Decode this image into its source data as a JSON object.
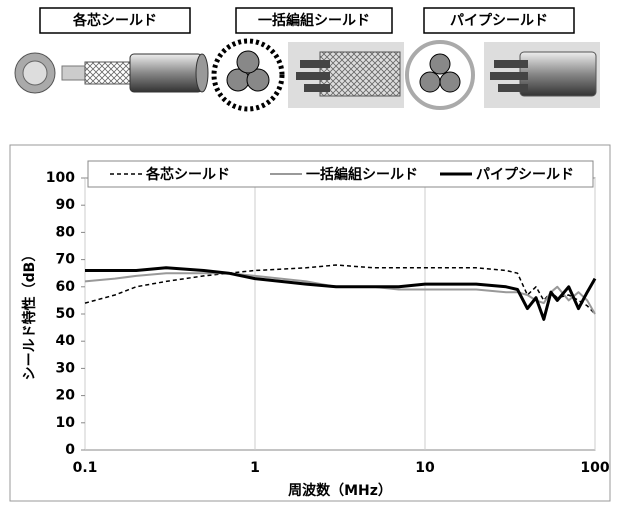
{
  "cable_types": [
    "各芯シールド",
    "一括編組シールド",
    "パイプシールド"
  ],
  "chart_data": {
    "type": "line",
    "x_label": "周波数（MHz）",
    "y_label": "シールド特性（dB）",
    "xscale": "log",
    "xlim": [
      0.1,
      100
    ],
    "xticks": [
      0.1,
      1,
      10,
      100
    ],
    "ylim": [
      0,
      100
    ],
    "yticks": [
      0,
      10,
      20,
      30,
      40,
      50,
      60,
      70,
      80,
      90,
      100
    ],
    "grid": "x",
    "legend": "top",
    "x": [
      0.1,
      0.15,
      0.2,
      0.3,
      0.5,
      0.7,
      1,
      2,
      3,
      5,
      7,
      10,
      20,
      30,
      35,
      40,
      45,
      50,
      55,
      60,
      70,
      80,
      90,
      100
    ],
    "series": [
      {
        "name": "各芯シールド",
        "color": "#000000",
        "dash": true,
        "width": 1.5,
        "values": [
          54,
          57,
          60,
          62,
          64,
          65,
          66,
          67,
          68,
          67,
          67,
          67,
          67,
          66,
          65,
          57,
          60,
          55,
          58,
          56,
          57,
          55,
          53,
          50
        ]
      },
      {
        "name": "一括編組シールド",
        "color": "#999999",
        "dash": false,
        "width": 2,
        "values": [
          62,
          63,
          64,
          65,
          65,
          65,
          64,
          62,
          60,
          60,
          59,
          59,
          59,
          58,
          58,
          57,
          55,
          54,
          58,
          60,
          55,
          58,
          55,
          50
        ]
      },
      {
        "name": "パイプシールド",
        "color": "#000000",
        "dash": false,
        "width": 3,
        "values": [
          66,
          66,
          66,
          67,
          66,
          65,
          63,
          61,
          60,
          60,
          60,
          61,
          61,
          60,
          59,
          52,
          56,
          48,
          58,
          55,
          60,
          52,
          58,
          63
        ]
      }
    ]
  }
}
